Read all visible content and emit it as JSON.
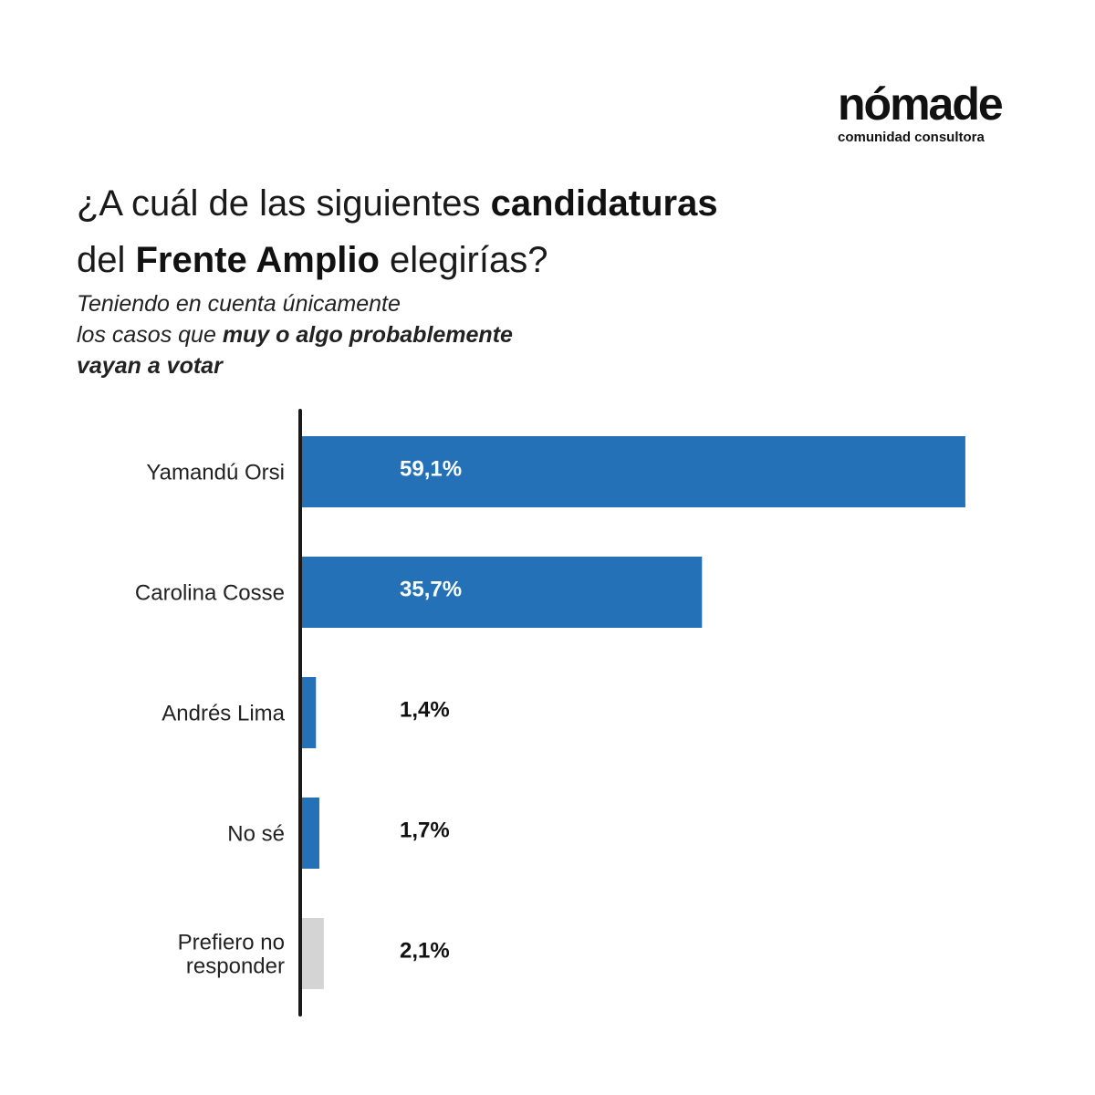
{
  "brand": {
    "name": "nómade",
    "tagline": "comunidad consultora"
  },
  "heading": {
    "title_part1": "¿A cuál de las siguientes ",
    "title_bold1": "candidaturas",
    "title_part2": "del ",
    "title_bold2": "Frente Amplio",
    "title_part3": " elegirías?",
    "subtitle_line1": "Teniendo en cuenta únicamente",
    "subtitle_line2_prefix": "los casos que ",
    "subtitle_line2_bold": "muy o algo probablemente",
    "subtitle_line3_bold": "vayan a votar"
  },
  "colors": {
    "primary_bar": "#2571b8",
    "neutral_bar": "#d4d4d4",
    "axis": "#1a1a1a",
    "label_inside": "#ffffff",
    "label_outside": "#111111"
  },
  "chart_data": {
    "type": "bar",
    "orientation": "horizontal",
    "categories": [
      "Yamandú Orsi",
      "Carolina Cosse",
      "Andrés Lima",
      "No sé",
      "Prefiero no responder"
    ],
    "category_lines": [
      [
        "Yamandú Orsi"
      ],
      [
        "Carolina Cosse"
      ],
      [
        "Andrés Lima"
      ],
      [
        "No sé"
      ],
      [
        "Prefiero no",
        "responder"
      ]
    ],
    "values": [
      59.1,
      35.7,
      1.4,
      1.7,
      2.1
    ],
    "value_labels": [
      "59,1%",
      "35,7%",
      "1,4%",
      "1,7%",
      "2,1%"
    ],
    "bar_color_keys": [
      "primary",
      "primary",
      "primary",
      "primary",
      "neutral"
    ],
    "xlim": [
      0,
      60
    ],
    "grid": false,
    "legend": "none"
  }
}
